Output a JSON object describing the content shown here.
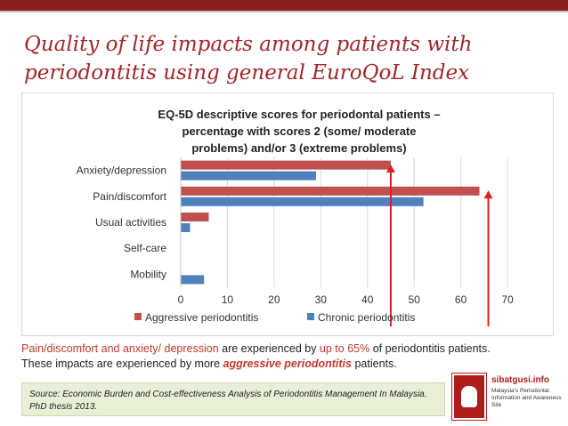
{
  "slide": {
    "title_line1": "Quality of  life impacts among patients with",
    "title_line2": "periodontitis using general EuroQoL Index"
  },
  "chart_data": {
    "type": "bar",
    "orientation": "horizontal",
    "title_lines": [
      "EQ-5D descriptive scores for periodontal patients –",
      "percentage with scores 2 (some/ moderate",
      "problems) and/or 3 (extreme problems)"
    ],
    "categories": [
      "Anxiety/depression",
      "Pain/discomfort",
      "Usual activities",
      "Self-care",
      "Mobility"
    ],
    "series": [
      {
        "name": "Aggressive periodontitis",
        "color": "#c0504d",
        "values": [
          45,
          64,
          6,
          0,
          0
        ]
      },
      {
        "name": "Chronic periodontitis",
        "color": "#4f81bd",
        "values": [
          29,
          52,
          2,
          0,
          5
        ]
      }
    ],
    "xlim": [
      0,
      70
    ],
    "xticks": [
      "0",
      "10",
      "20",
      "30",
      "40",
      "50",
      "60",
      "70"
    ],
    "grid": true,
    "legend": "bottom",
    "annotations": [
      {
        "kind": "arrow",
        "color": "#e02020",
        "at_value": 45,
        "points_to": "Anxiety/depression"
      },
      {
        "kind": "arrow",
        "color": "#e02020",
        "at_value": 64,
        "points_to": "Pain/discomfort"
      }
    ]
  },
  "note": {
    "part1": "Pain/discomfort and anxiety/ depression",
    "part2": " are experienced by ",
    "part3": "up to 65%",
    "part4": " of periodontitis patients.",
    "line2_part1": "These impacts are experienced by more ",
    "line2_part2": "aggressive periodontitis",
    "line2_part3": " patients."
  },
  "source": {
    "text": "Source: Economic Burden and Cost-effectiveness Analysis of Periodontitis Management In Malaysia.   PhD thesis 2013."
  },
  "logo": {
    "name": "sibatgusi.info",
    "tagline": "Malaysia's Periodontal Information and Awareness Site"
  },
  "colors": {
    "accent": "#a1262a",
    "arrow": "#e02020"
  }
}
